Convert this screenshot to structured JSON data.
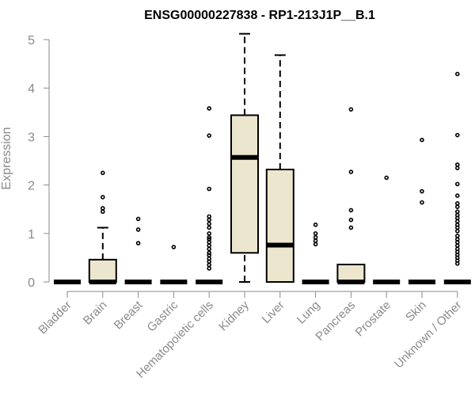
{
  "chart_data": {
    "type": "box",
    "title": "ENSG00000227838 - RP1-213J1P__B.1",
    "xlabel": "",
    "ylabel": "Expression",
    "ylim": [
      0,
      5
    ],
    "yticks": [
      0,
      1,
      2,
      3,
      4,
      5
    ],
    "box_fill": "#ede6cf",
    "categories": [
      "Bladder",
      "Brain",
      "Breast",
      "Gastric",
      "Hematopoietic cells",
      "Kidney",
      "Liver",
      "Lung",
      "Pancreas",
      "Prostate",
      "Skin",
      "Unknown / Other"
    ],
    "boxes": [
      {
        "min": 0,
        "q1": 0,
        "median": 0,
        "q3": 0,
        "max": 0,
        "outliers": []
      },
      {
        "min": 0,
        "q1": 0,
        "median": 0,
        "q3": 0.46,
        "max": 1.12,
        "outliers": [
          1.45,
          1.52,
          1.75,
          2.25
        ]
      },
      {
        "min": 0,
        "q1": 0,
        "median": 0,
        "q3": 0,
        "max": 0,
        "outliers": [
          0.8,
          1.08,
          1.3
        ]
      },
      {
        "min": 0,
        "q1": 0,
        "median": 0,
        "q3": 0,
        "max": 0,
        "outliers": [
          0.72
        ]
      },
      {
        "min": 0,
        "q1": 0,
        "median": 0,
        "q3": 0,
        "max": 0,
        "outliers": [
          0.28,
          0.35,
          0.42,
          0.48,
          0.55,
          0.6,
          0.68,
          0.75,
          0.82,
          0.88,
          0.92,
          1.0,
          1.12,
          1.2,
          1.28,
          1.35,
          1.92,
          3.02,
          3.58
        ]
      },
      {
        "min": 0,
        "q1": 0.6,
        "median": 2.57,
        "q3": 3.44,
        "max": 5.12,
        "outliers": []
      },
      {
        "min": 0,
        "q1": 0,
        "median": 0.76,
        "q3": 2.32,
        "max": 4.68,
        "outliers": []
      },
      {
        "min": 0,
        "q1": 0,
        "median": 0,
        "q3": 0,
        "max": 0,
        "outliers": [
          0.78,
          0.85,
          0.92,
          1.0,
          1.18
        ]
      },
      {
        "min": 0,
        "q1": 0,
        "median": 0,
        "q3": 0.36,
        "max": 0.36,
        "outliers": [
          1.12,
          1.28,
          1.48,
          2.27,
          3.56
        ]
      },
      {
        "min": 0,
        "q1": 0,
        "median": 0,
        "q3": 0,
        "max": 0,
        "outliers": [
          2.15
        ]
      },
      {
        "min": 0,
        "q1": 0,
        "median": 0,
        "q3": 0,
        "max": 0,
        "outliers": [
          1.64,
          1.87,
          2.93
        ]
      },
      {
        "min": 0,
        "q1": 0,
        "median": 0,
        "q3": 0,
        "max": 0,
        "outliers": [
          0.38,
          0.44,
          0.5,
          0.56,
          0.62,
          0.68,
          0.75,
          0.82,
          0.88,
          0.95,
          1.05,
          1.12,
          1.18,
          1.25,
          1.32,
          1.38,
          1.45,
          1.55,
          1.62,
          1.78,
          2.02,
          2.35,
          2.42,
          3.03,
          4.29
        ]
      }
    ]
  }
}
